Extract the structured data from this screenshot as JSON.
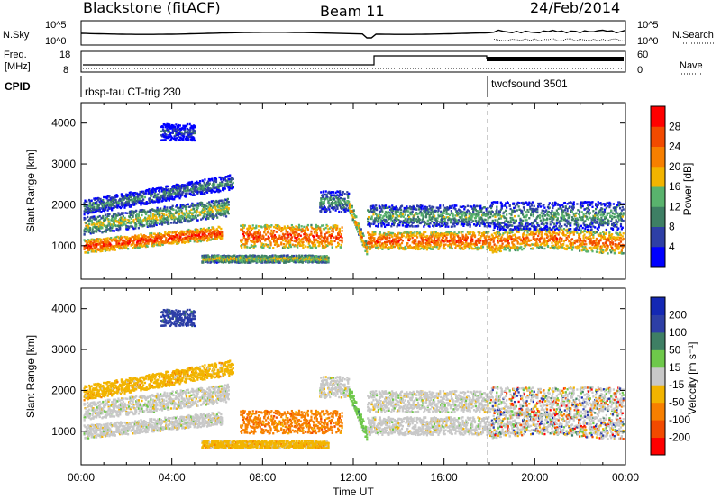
{
  "header": {
    "station": "Blackstone (fitACF)",
    "beam": "Beam 11",
    "date": "24/Feb/2014"
  },
  "top_panels": {
    "nsky_label": "N.Sky",
    "nsky_ticks": [
      "10^5",
      "10^0"
    ],
    "nsearch_label": "N.Search",
    "nsearch_ticks": [
      "10^5",
      "10^0"
    ],
    "freq_label_1": "Freq.",
    "freq_label_2": "[MHz]",
    "freq_ticks": [
      "18",
      "8"
    ],
    "nave_label": "Nave",
    "nave_ticks": [
      "60",
      "0"
    ],
    "cpid_label": "CPID",
    "cpid_segments": [
      {
        "name": "rbsp-tau CT-trig 230",
        "start": 0
      },
      {
        "name": "twofsound 3501",
        "start": 18
      }
    ]
  },
  "colors": {
    "power_scale": [
      "#0000ff",
      "#2e3fa6",
      "#3e7f64",
      "#59b36d",
      "#f2b400",
      "#f77f00",
      "#f24a00",
      "#ff0000"
    ],
    "velocity_scale": [
      "#ff0000",
      "#f24a00",
      "#f77f00",
      "#f2b400",
      "#c8c8c8",
      "#6ec84a",
      "#3e7f64",
      "#2e3fa6",
      "#1428b4"
    ]
  },
  "chart_data": [
    {
      "type": "heatmap",
      "title": "Power",
      "xlabel": "",
      "ylabel": "Slant Range [km]",
      "xlim": [
        0,
        24
      ],
      "ylim": [
        180,
        4500
      ],
      "xticks": [
        "00:00",
        "04:00",
        "08:00",
        "12:00",
        "16:00",
        "20:00",
        "00:00"
      ],
      "yticks": [
        1000,
        2000,
        3000,
        4000
      ],
      "colorbar": {
        "label": "Power [dB]",
        "ticks": [
          4,
          8,
          12,
          16,
          20,
          24,
          28
        ],
        "range": [
          0,
          32
        ]
      },
      "vertical_marker_x": 18
    },
    {
      "type": "heatmap",
      "title": "Velocity",
      "xlabel": "Time UT",
      "ylabel": "Slant Range [km]",
      "xlim": [
        0,
        24
      ],
      "ylim": [
        180,
        4500
      ],
      "xticks": [
        "00:00",
        "04:00",
        "08:00",
        "12:00",
        "16:00",
        "20:00",
        "00:00"
      ],
      "yticks": [
        1000,
        2000,
        3000,
        4000
      ],
      "colorbar": {
        "label": "Velocity [m s⁻¹]",
        "ticks": [
          -200,
          -100,
          -50,
          -15,
          15,
          50,
          100,
          200
        ],
        "range": [
          -250,
          250
        ]
      },
      "vertical_marker_x": 18
    }
  ]
}
